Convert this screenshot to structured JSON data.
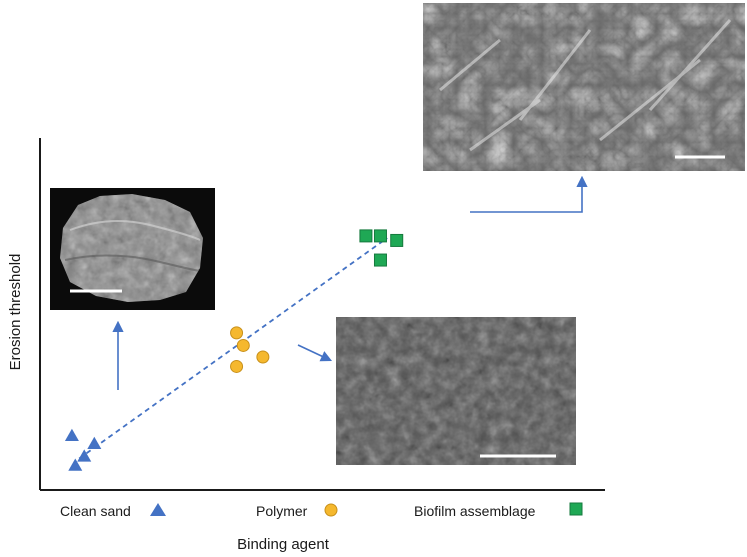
{
  "chart_data": {
    "type": "scatter",
    "title": "",
    "xlabel": "Binding agent",
    "ylabel": "Erosion threshold",
    "categories": [
      "Clean sand",
      "Polymer",
      "Biofilm assemblage"
    ],
    "grid": false,
    "legend": "bottom",
    "series": [
      {
        "name": "Clean sand",
        "marker": "triangle",
        "color": "#4472c4",
        "points": [
          [
            0.57,
            1.55
          ],
          [
            0.63,
            0.7
          ],
          [
            0.79,
            0.96
          ],
          [
            0.97,
            1.32
          ]
        ]
      },
      {
        "name": "Polymer",
        "marker": "circle",
        "color": "#f5b82e",
        "points": [
          [
            3.51,
            4.49
          ],
          [
            3.63,
            4.13
          ],
          [
            3.51,
            3.53
          ],
          [
            3.98,
            3.8
          ]
        ]
      },
      {
        "name": "Biofilm assemblage",
        "marker": "square",
        "color": "#1fa855",
        "points": [
          [
            5.82,
            7.26
          ],
          [
            6.08,
            7.26
          ],
          [
            6.37,
            7.13
          ],
          [
            6.08,
            6.57
          ]
        ]
      }
    ],
    "trendline": {
      "style": "dashed",
      "color": "#4472c4",
      "from": [
        0.7,
        0.9
      ],
      "to": [
        6.2,
        7.2
      ]
    },
    "x_range": [
      0,
      10
    ],
    "y_range": [
      0,
      10
    ],
    "insets": [
      {
        "subject": "Clean sand",
        "image": "SEM micrograph",
        "scale_bar": true
      },
      {
        "subject": "Polymer",
        "image": "SEM micrograph",
        "scale_bar": true
      },
      {
        "subject": "Biofilm assemblage",
        "image": "SEM micrograph",
        "scale_bar": true
      }
    ]
  },
  "colors": {
    "axis": "#1a1a1a",
    "arrow": "#4472c4"
  }
}
